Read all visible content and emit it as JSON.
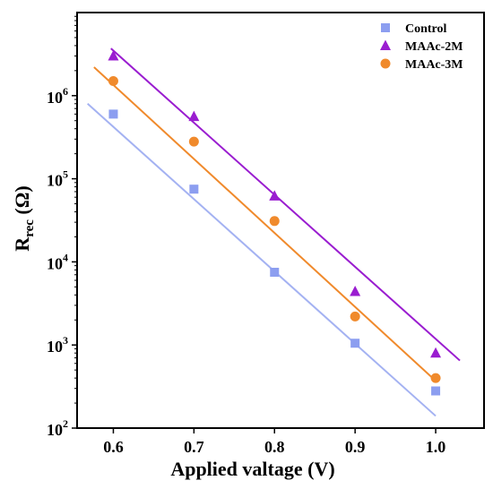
{
  "chart_data": {
    "type": "scatter",
    "xlabel": "Applied valtage (V)",
    "ylabel": {
      "main": "R",
      "sub": "rec",
      "unit": " (Ω)"
    },
    "xlim": [
      0.555,
      1.06
    ],
    "ylim": [
      100,
      10000000
    ],
    "yscale": "log",
    "grid": false,
    "legend_position": "top-right",
    "x_ticks": [
      0.6,
      0.7,
      0.8,
      0.9,
      1.0
    ],
    "x_tick_labels": [
      "0.6",
      "0.7",
      "0.8",
      "0.9",
      "1.0"
    ],
    "y_ticks": [
      {
        "value": 100,
        "base": "10",
        "exp": "2"
      },
      {
        "value": 1000,
        "base": "10",
        "exp": "3"
      },
      {
        "value": 10000,
        "base": "10",
        "exp": "4"
      },
      {
        "value": 100000,
        "base": "10",
        "exp": "5"
      },
      {
        "value": 1000000,
        "base": "10",
        "exp": "6"
      }
    ],
    "series": [
      {
        "name": "Control",
        "marker": "square",
        "color": "#8c9ef0",
        "line_color": "#a4b2f2",
        "x": [
          0.6,
          0.7,
          0.8,
          0.9,
          1.0
        ],
        "y": [
          600000,
          75000,
          7500,
          1050,
          280
        ],
        "fit": {
          "x": [
            0.568,
            1.0
          ],
          "y": [
            800000,
            140
          ]
        }
      },
      {
        "name": "MAAc-2M",
        "marker": "triangle",
        "color": "#9a1dd0",
        "line_color": "#9a1dd0",
        "x": [
          0.6,
          0.7,
          0.8,
          0.9,
          1.0
        ],
        "y": [
          3000000,
          560000,
          62000,
          4400,
          800
        ],
        "fit": {
          "x": [
            0.597,
            1.03
          ],
          "y": [
            3700000,
            650
          ]
        }
      },
      {
        "name": "MAAc-3M",
        "marker": "circle",
        "color": "#f08a2c",
        "line_color": "#f08a2c",
        "x": [
          0.6,
          0.7,
          0.8,
          0.9,
          1.0
        ],
        "y": [
          1500000,
          280000,
          31000,
          2200,
          400
        ],
        "fit": {
          "x": [
            0.576,
            1.0
          ],
          "y": [
            2200000,
            370
          ]
        }
      }
    ]
  }
}
